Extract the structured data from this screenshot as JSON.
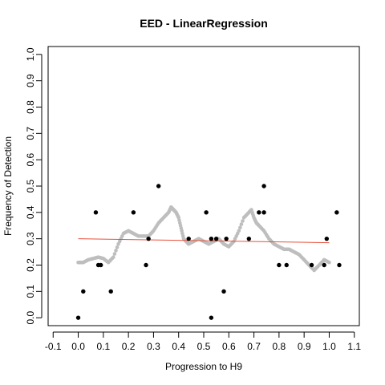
{
  "chart_data": {
    "type": "scatter",
    "title": "EED - LinearRegression",
    "xlabel": "Progression to H9",
    "ylabel": "Frequency of Detection",
    "xlim": [
      -0.12,
      1.12
    ],
    "ylim": [
      -0.03,
      1.03
    ],
    "x_ticks": [
      -0.1,
      0.0,
      0.1,
      0.2,
      0.3,
      0.4,
      0.5,
      0.6,
      0.7,
      0.8,
      0.9,
      1.0,
      1.1
    ],
    "x_tick_labels": [
      "-0.1",
      "0.0",
      "0.1",
      "0.2",
      "0.3",
      "0.4",
      "0.5",
      "0.6",
      "0.7",
      "0.8",
      "0.9",
      "1.0",
      "1.1"
    ],
    "y_ticks": [
      0.0,
      0.1,
      0.2,
      0.3,
      0.4,
      0.5,
      0.6,
      0.7,
      0.8,
      0.9,
      1.0
    ],
    "y_tick_labels": [
      "0.0",
      "0.1",
      "0.2",
      "0.3",
      "0.4",
      "0.5",
      "0.6",
      "0.7",
      "0.8",
      "0.9",
      "1.0"
    ],
    "grid": false,
    "series": [
      {
        "kind": "observations",
        "color": "#000000",
        "points": [
          [
            0.0,
            0.0
          ],
          [
            0.02,
            0.1
          ],
          [
            0.07,
            0.4
          ],
          [
            0.08,
            0.2
          ],
          [
            0.09,
            0.2
          ],
          [
            0.13,
            0.1
          ],
          [
            0.22,
            0.4
          ],
          [
            0.27,
            0.2
          ],
          [
            0.28,
            0.3
          ],
          [
            0.32,
            0.5
          ],
          [
            0.44,
            0.3
          ],
          [
            0.51,
            0.4
          ],
          [
            0.53,
            0.3
          ],
          [
            0.53,
            0.0
          ],
          [
            0.55,
            0.3
          ],
          [
            0.58,
            0.1
          ],
          [
            0.59,
            0.3
          ],
          [
            0.68,
            0.3
          ],
          [
            0.72,
            0.4
          ],
          [
            0.74,
            0.4
          ],
          [
            0.74,
            0.5
          ],
          [
            0.8,
            0.2
          ],
          [
            0.83,
            0.2
          ],
          [
            0.93,
            0.2
          ],
          [
            0.98,
            0.2
          ],
          [
            0.99,
            0.3
          ],
          [
            1.03,
            0.4
          ],
          [
            1.04,
            0.2
          ]
        ]
      },
      {
        "kind": "smoothed",
        "color": "#bebebe",
        "points": [
          [
            0.0,
            0.21
          ],
          [
            0.02,
            0.21
          ],
          [
            0.04,
            0.22
          ],
          [
            0.06,
            0.225
          ],
          [
            0.08,
            0.23
          ],
          [
            0.1,
            0.225
          ],
          [
            0.12,
            0.21
          ],
          [
            0.14,
            0.23
          ],
          [
            0.16,
            0.28
          ],
          [
            0.18,
            0.32
          ],
          [
            0.2,
            0.33
          ],
          [
            0.22,
            0.32
          ],
          [
            0.24,
            0.31
          ],
          [
            0.26,
            0.31
          ],
          [
            0.28,
            0.31
          ],
          [
            0.3,
            0.33
          ],
          [
            0.32,
            0.36
          ],
          [
            0.34,
            0.38
          ],
          [
            0.36,
            0.4
          ],
          [
            0.37,
            0.42
          ],
          [
            0.38,
            0.41
          ],
          [
            0.39,
            0.4
          ],
          [
            0.4,
            0.38
          ],
          [
            0.41,
            0.34
          ],
          [
            0.42,
            0.3
          ],
          [
            0.43,
            0.29
          ],
          [
            0.44,
            0.28
          ],
          [
            0.46,
            0.29
          ],
          [
            0.48,
            0.3
          ],
          [
            0.5,
            0.29
          ],
          [
            0.52,
            0.28
          ],
          [
            0.54,
            0.29
          ],
          [
            0.56,
            0.3
          ],
          [
            0.58,
            0.28
          ],
          [
            0.6,
            0.27
          ],
          [
            0.62,
            0.29
          ],
          [
            0.64,
            0.33
          ],
          [
            0.66,
            0.38
          ],
          [
            0.68,
            0.4
          ],
          [
            0.69,
            0.41
          ],
          [
            0.7,
            0.38
          ],
          [
            0.71,
            0.36
          ],
          [
            0.72,
            0.35
          ],
          [
            0.74,
            0.33
          ],
          [
            0.76,
            0.3
          ],
          [
            0.78,
            0.28
          ],
          [
            0.8,
            0.27
          ],
          [
            0.82,
            0.26
          ],
          [
            0.84,
            0.26
          ],
          [
            0.86,
            0.25
          ],
          [
            0.88,
            0.24
          ],
          [
            0.9,
            0.22
          ],
          [
            0.92,
            0.2
          ],
          [
            0.94,
            0.18
          ],
          [
            0.96,
            0.2
          ],
          [
            0.98,
            0.22
          ],
          [
            1.0,
            0.21
          ]
        ]
      },
      {
        "kind": "regression-line",
        "color": "#e8503a",
        "points": [
          [
            0.0,
            0.3
          ],
          [
            1.0,
            0.285
          ]
        ]
      }
    ]
  }
}
